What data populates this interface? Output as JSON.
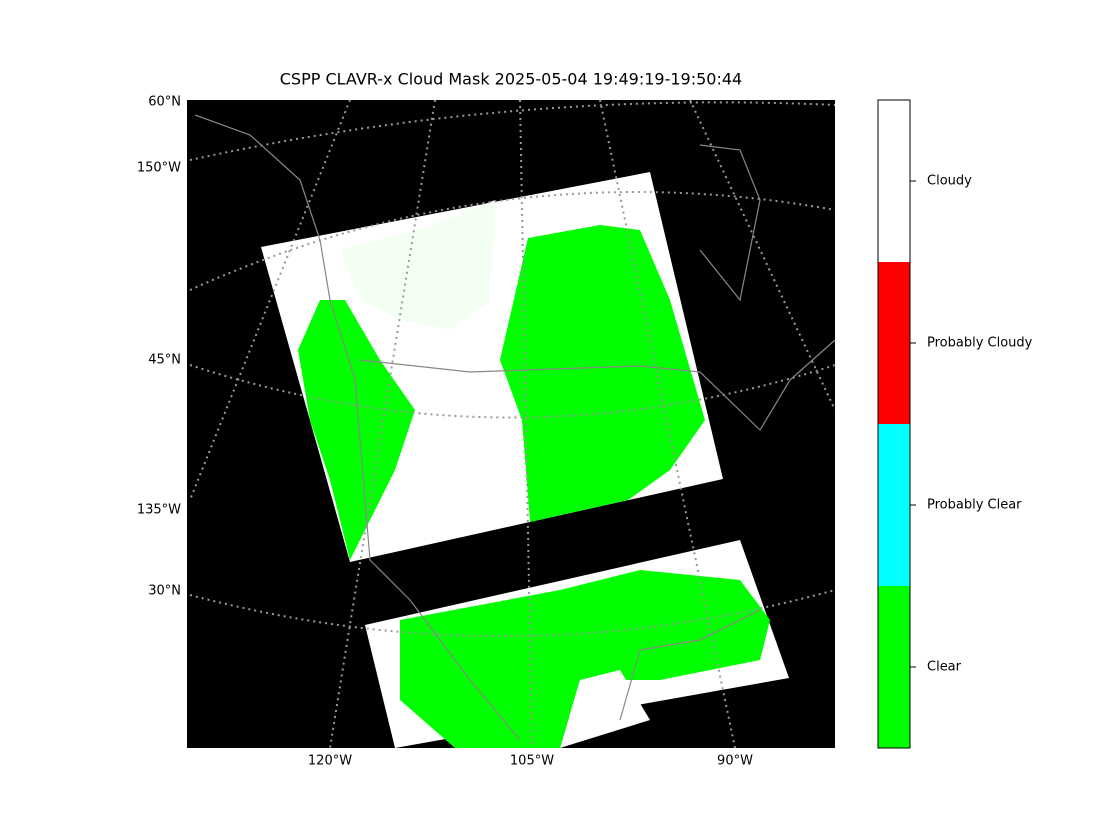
{
  "title": "CSPP CLAVR-x Cloud Mask 2025-05-04 19:49:19-19:50:44",
  "map": {
    "left_labels": [
      "60°N",
      "150°W",
      "45°N",
      "135°W",
      "30°N"
    ],
    "bottom_labels": [
      "120°W",
      "105°W",
      "90°W"
    ]
  },
  "colorbar": {
    "entries": [
      {
        "label": "Cloudy",
        "color": "#ffffff"
      },
      {
        "label": "Probably Cloudy",
        "color": "#ff0000"
      },
      {
        "label": "Probably Clear",
        "color": "#00ffff"
      },
      {
        "label": "Clear",
        "color": "#00ff00"
      }
    ]
  }
}
